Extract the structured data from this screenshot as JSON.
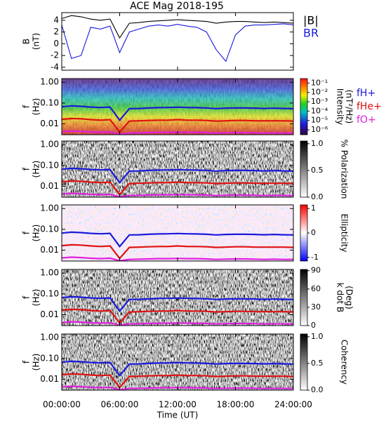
{
  "chart_data": [
    {
      "type": "line",
      "title": "ACE Mag 2018-195",
      "ylabel": [
        "B",
        "(nT)"
      ],
      "x": [
        0,
        1,
        2,
        3,
        4,
        5,
        6,
        7,
        8,
        9,
        10,
        11,
        12,
        13,
        14,
        15,
        16,
        17,
        18,
        19,
        20,
        21,
        22,
        23,
        24
      ],
      "ylim": [
        -4.5,
        5.3
      ],
      "yticks": [
        4,
        2,
        0,
        -2,
        -4
      ],
      "series": [
        {
          "name": "|B|",
          "color": "#000000",
          "values": [
            4.3,
            4.8,
            4.6,
            4.2,
            4.0,
            4.2,
            1.0,
            3.5,
            3.6,
            3.8,
            3.9,
            4.0,
            4.1,
            4.0,
            3.9,
            3.8,
            3.5,
            3.7,
            3.8,
            3.8,
            3.7,
            3.6,
            3.7,
            3.6,
            3.5
          ]
        },
        {
          "name": "BR",
          "color": "#1a1adc",
          "values": [
            3.2,
            -2.5,
            -2.0,
            2.8,
            2.5,
            3.0,
            -1.5,
            2.0,
            2.5,
            3.0,
            3.2,
            3.0,
            3.3,
            3.0,
            2.8,
            2.0,
            -1.0,
            -3.0,
            1.5,
            3.0,
            3.2,
            3.2,
            3.3,
            3.4,
            3.2
          ]
        }
      ]
    },
    {
      "type": "spectrogram",
      "ylabel": [
        "f",
        "(Hz)"
      ],
      "ylim": [
        0.003,
        1.5
      ],
      "log_y": true,
      "yticks": [
        {
          "value": 1,
          "label": "1.00"
        },
        {
          "value": 0.1,
          "label": "0.10"
        },
        0.01
      ],
      "colormap": "rainbow",
      "clabel": [
        "Intensity",
        "(nT²/Hz)"
      ],
      "clim": [
        3e-07,
        0.3
      ],
      "clog": true,
      "cticks": [
        {
          "value": 0.1,
          "label": "10⁻¹"
        },
        {
          "value": 0.01,
          "label": "10⁻²"
        },
        {
          "value": 0.001,
          "label": "10⁻³"
        },
        {
          "value": 0.0001,
          "label": "10⁻⁴"
        },
        {
          "value": 1e-05,
          "label": "10⁻⁵"
        },
        {
          "value": 1e-06,
          "label": "10⁻⁶"
        }
      ],
      "x": [
        0,
        1,
        2,
        3,
        4,
        5,
        6,
        7,
        8,
        9,
        10,
        11,
        12,
        13,
        14,
        15,
        16,
        17,
        18,
        19,
        20,
        21,
        22,
        23,
        24
      ],
      "series": [
        {
          "name": "fH+",
          "color": "#1a1adc",
          "values": [
            0.066,
            0.073,
            0.07,
            0.064,
            0.061,
            0.064,
            0.015,
            0.054,
            0.055,
            0.058,
            0.06,
            0.061,
            0.063,
            0.061,
            0.06,
            0.058,
            0.054,
            0.057,
            0.058,
            0.058,
            0.057,
            0.055,
            0.057,
            0.055,
            0.054
          ]
        },
        {
          "name": "fHe+",
          "color": "#e01010",
          "values": [
            0.0165,
            0.018,
            0.0175,
            0.016,
            0.015,
            0.016,
            0.004,
            0.0135,
            0.014,
            0.0145,
            0.015,
            0.015,
            0.016,
            0.015,
            0.015,
            0.0145,
            0.0135,
            0.014,
            0.0145,
            0.0145,
            0.014,
            0.014,
            0.014,
            0.014,
            0.0135
          ]
        },
        {
          "name": "fO+",
          "color": "#e020e0",
          "values": [
            0.0042,
            0.0046,
            0.0044,
            0.0041,
            0.0039,
            0.0041,
            0.0031,
            0.0036,
            0.0037,
            0.0038,
            0.0039,
            0.0039,
            0.004,
            0.0039,
            0.0039,
            0.0038,
            0.0036,
            0.0037,
            0.0038,
            0.0038,
            0.0037,
            0.0036,
            0.0037,
            0.0036,
            0.0036
          ]
        }
      ]
    },
    {
      "type": "spectrogram",
      "ylabel": [
        "f",
        "(Hz)"
      ],
      "ylim": [
        0.003,
        1.5
      ],
      "log_y": true,
      "yticks": [
        {
          "value": 1,
          "label": "1.00"
        },
        {
          "value": 0.1,
          "label": "0.10"
        },
        0.01
      ],
      "colormap": "gray",
      "clabel": [
        "% Polarization"
      ],
      "clim": [
        0,
        1.05
      ],
      "cticks": [
        {
          "value": 0,
          "label": "0.0"
        },
        0.5,
        {
          "value": 1,
          "label": "1.0"
        }
      ]
    },
    {
      "type": "spectrogram",
      "ylabel": [
        "f",
        "(Hz)"
      ],
      "ylim": [
        0.003,
        1.5
      ],
      "log_y": true,
      "yticks": [
        {
          "value": 1,
          "label": "1.00"
        },
        {
          "value": 0.1,
          "label": "0.10"
        },
        0.01
      ],
      "colormap": "bwr",
      "clabel": [
        "Ellipticity"
      ],
      "clim": [
        -1.15,
        1.15
      ],
      "cticks": [
        1,
        0,
        -1
      ]
    },
    {
      "type": "spectrogram",
      "ylabel": [
        "f",
        "(Hz)"
      ],
      "ylim": [
        0.003,
        1.5
      ],
      "log_y": true,
      "yticks": [
        {
          "value": 1,
          "label": "1.00"
        },
        {
          "value": 0.1,
          "label": "0.10"
        },
        0.01
      ],
      "colormap": "gray",
      "clabel": [
        "k dot B",
        "(Deg)"
      ],
      "clim": [
        0,
        92
      ],
      "cticks": [
        0,
        30,
        60,
        90
      ]
    },
    {
      "type": "spectrogram",
      "ylabel": [
        "f",
        "(Hz)"
      ],
      "ylim": [
        0.003,
        1.5
      ],
      "log_y": true,
      "yticks": [
        {
          "value": 1,
          "label": "1.00"
        },
        {
          "value": 0.1,
          "label": "0.10"
        },
        0.01
      ],
      "colormap": "gray",
      "clabel": [
        "Coherency"
      ],
      "clim": [
        0,
        1.05
      ],
      "cticks": [
        {
          "value": 0,
          "label": "0.0"
        },
        0.5,
        {
          "value": 1,
          "label": "1.0"
        }
      ],
      "xlim": [
        0,
        24
      ],
      "xlabel": "Time (UT)",
      "xticks": [
        {
          "value": 0,
          "label": "00:00:00"
        },
        {
          "value": 6,
          "label": "06:00:00"
        },
        {
          "value": 12,
          "label": "12:00:00"
        },
        {
          "value": 18,
          "label": "18:00:00"
        },
        {
          "value": 24,
          "label": "24:00:00"
        }
      ]
    }
  ]
}
